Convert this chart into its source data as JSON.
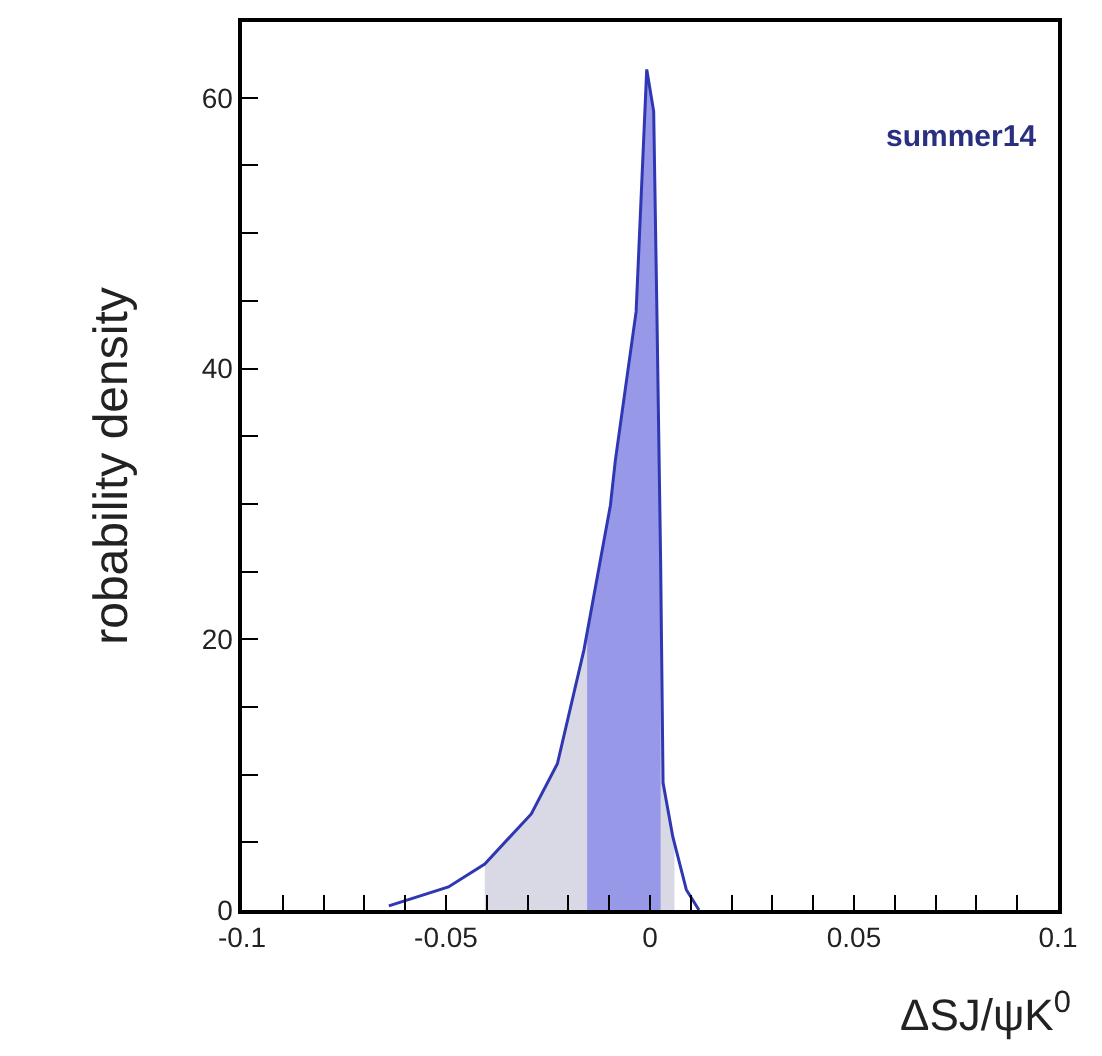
{
  "chart_data": {
    "type": "area",
    "xlabel": "ΔSJ/ψK$^{0}$",
    "ylabel": "robability density",
    "annotations": [
      "summer14"
    ],
    "xlim": [
      -0.1,
      0.1
    ],
    "ylim": [
      0,
      65.6
    ],
    "xticks": [
      {
        "value": -0.1,
        "label": "-0.1"
      },
      {
        "value": -0.05,
        "label": "-0.05"
      },
      0,
      0.05,
      0.1,
      {
        "value": -0.09,
        "label": null
      },
      {
        "value": -0.08,
        "label": null
      },
      {
        "value": -0.07,
        "label": null
      },
      {
        "value": -0.06,
        "label": null
      },
      {
        "value": -0.04,
        "label": null
      },
      {
        "value": -0.03,
        "label": null
      },
      {
        "value": -0.02,
        "label": null
      },
      {
        "value": -0.01,
        "label": null
      },
      {
        "value": 0.01,
        "label": null
      },
      {
        "value": 0.02,
        "label": null
      },
      {
        "value": 0.03,
        "label": null
      },
      {
        "value": 0.04,
        "label": null
      },
      {
        "value": 0.06,
        "label": null
      },
      {
        "value": 0.07,
        "label": null
      },
      {
        "value": 0.08,
        "label": null
      },
      {
        "value": 0.09,
        "label": null
      }
    ],
    "yticks": [
      0,
      20,
      40,
      60,
      {
        "value": 5,
        "label": null
      },
      {
        "value": 10,
        "label": null
      },
      {
        "value": 15,
        "label": null
      },
      {
        "value": 25,
        "label": null
      },
      {
        "value": 30,
        "label": null
      },
      {
        "value": 35,
        "label": null
      },
      {
        "value": 45,
        "label": null
      },
      {
        "value": 50,
        "label": null
      },
      {
        "value": 55,
        "label": null
      }
    ],
    "series": [
      {
        "color": "#d9d9e6",
        "x": [
          -0.0405,
          -0.0291,
          -0.0227,
          -0.0162,
          -0.0097,
          -0.0085,
          -0.0034,
          -0.0008,
          0.0009,
          0.0017,
          0.0026,
          0.0032,
          0.0056,
          0.006
        ],
        "values": [
          3.4,
          7.1,
          10.8,
          19.2,
          29.9,
          33.2,
          44.2,
          62.1,
          59,
          44,
          25.9,
          9.4,
          5.4,
          5
        ]
      },
      {
        "color": "#9898e8",
        "x": [
          -0.0154,
          -0.0097,
          -0.0085,
          -0.0034,
          -0.0008,
          0.0009,
          0.0017,
          0.0026
        ],
        "values": [
          20.3,
          29.9,
          33.2,
          44.2,
          62.1,
          59,
          44,
          25.9
        ]
      },
      {
        "type": "line",
        "color": "#2f37b3",
        "x": [
          -0.064,
          -0.0494,
          -0.0405,
          -0.0291,
          -0.0227,
          -0.0162,
          -0.0097,
          -0.0085,
          -0.0034,
          -0.0008,
          0.0009,
          0.0017,
          0.0026,
          0.0032,
          0.0056,
          0.0089,
          0.012
        ],
        "values": [
          0.3,
          1.7,
          3.4,
          7.1,
          10.8,
          19.2,
          29.9,
          33.2,
          44.2,
          62.1,
          59,
          44,
          25.9,
          9.4,
          5.4,
          1.5,
          0
        ]
      }
    ]
  }
}
